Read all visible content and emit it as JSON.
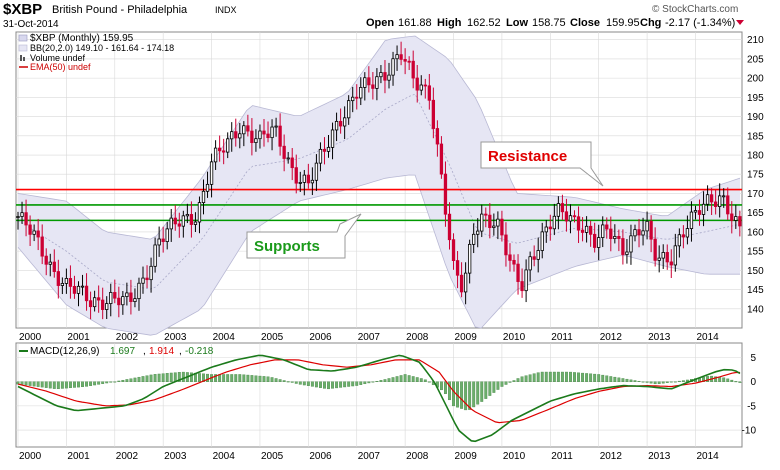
{
  "header": {
    "symbol": "$XBP",
    "name": "British Pound - Philadelphia",
    "exchange": "INDX",
    "date": "31-Oct-2014",
    "open_label": "Open",
    "open": "161.88",
    "high_label": "High",
    "high": "162.52",
    "low_label": "Low",
    "low": "158.75",
    "close_label": "Close",
    "close": "159.95",
    "chg_label": "Chg",
    "chg": "-2.17 (-1.34%)",
    "watermark": "© StockCharts.com"
  },
  "legend": {
    "price": "$XBP (Monthly) 159.95",
    "bb": "BB(20,2.0) 149.10 - 161.64 - 174.18",
    "volume": "Volume undef",
    "ema": "EMA(50) undef"
  },
  "annotations": {
    "resistance": "Resistance",
    "supports": "Supports"
  },
  "colors": {
    "up_candle": "#000000",
    "down_candle": "#cc0033",
    "bollinger_fill": "#e6e6f4",
    "bollinger_edge": "#b8b8d4",
    "resistance_line": "#ff0000",
    "support_line": "#009900",
    "macd_line": "#1b7a1b",
    "signal_line": "#dd0000",
    "histogram": "#6cae6c",
    "grid": "#d9d9d9"
  },
  "chart_data": [
    {
      "type": "candlestick",
      "title": "$XBP British Pound - Philadelphia INDX (Monthly)",
      "x_tick_labels": [
        "2000",
        "2001",
        "2002",
        "2003",
        "2004",
        "2005",
        "2006",
        "2007",
        "2008",
        "2009",
        "2010",
        "2011",
        "2012",
        "2013",
        "2014"
      ],
      "x_range": [
        2000.0,
        2014.92
      ],
      "ylim": [
        135,
        212
      ],
      "y_ticks": [
        140,
        145,
        150,
        155,
        160,
        165,
        170,
        175,
        180,
        185,
        190,
        195,
        200,
        205,
        210
      ],
      "horizontal_lines": [
        {
          "label": "Resistance",
          "y": 171
        },
        {
          "label": "Supports",
          "y": 167
        },
        {
          "label": "Supports",
          "y": 163
        }
      ],
      "close_anchors": {
        "x": [
          2000.0,
          2000.3,
          2000.7,
          2001.0,
          2001.5,
          2001.9,
          2002.3,
          2002.6,
          2002.9,
          2003.3,
          2003.7,
          2004.0,
          2004.3,
          2004.6,
          2005.0,
          2005.3,
          2005.7,
          2006.0,
          2006.3,
          2006.6,
          2007.0,
          2007.3,
          2007.6,
          2007.9,
          2008.2,
          2008.5,
          2008.7,
          2008.9,
          2009.0,
          2009.2,
          2009.4,
          2009.6,
          2009.9,
          2010.2,
          2010.4,
          2010.6,
          2010.9,
          2011.2,
          2011.4,
          2011.7,
          2011.9,
          2012.2,
          2012.5,
          2012.8,
          2013.0,
          2013.2,
          2013.5,
          2013.7,
          2014.0,
          2014.3,
          2014.55,
          2014.7,
          2014.92
        ],
        "y": [
          164,
          159,
          151,
          146,
          142,
          143,
          141,
          148,
          158,
          162,
          165,
          178,
          182,
          188,
          184,
          186,
          176,
          172,
          180,
          189,
          196,
          198,
          202,
          207,
          198,
          196,
          180,
          160,
          150,
          144,
          160,
          165,
          162,
          150,
          146,
          154,
          160,
          165,
          164,
          162,
          157,
          160,
          156,
          161,
          160,
          152,
          154,
          160,
          164,
          168,
          170,
          166,
          160
        ]
      },
      "bollinger_anchors": {
        "x": [
          2000.0,
          2001.0,
          2001.8,
          2002.8,
          2003.8,
          2004.8,
          2005.8,
          2006.8,
          2007.6,
          2008.2,
          2008.9,
          2009.5,
          2010.3,
          2011.5,
          2012.5,
          2013.4,
          2014.2,
          2014.92
        ],
        "upper": [
          170,
          168,
          160,
          158,
          174,
          193,
          190,
          196,
          210,
          211,
          205,
          194,
          170,
          169,
          166,
          164,
          171,
          174
        ],
        "middle": [
          163,
          155,
          147,
          145,
          158,
          177,
          179,
          184,
          192,
          196,
          178,
          160,
          157,
          161,
          160,
          158,
          160,
          162
        ],
        "lower": [
          156,
          141,
          135,
          133,
          140,
          160,
          168,
          171,
          174,
          175,
          149,
          134,
          145,
          151,
          154,
          151,
          149,
          149
        ]
      }
    },
    {
      "type": "line",
      "title": "MACD(12,26,9) 1.697, 1.914, -0.218",
      "x_range": [
        2000.0,
        2014.92
      ],
      "ylim": [
        -13.5,
        8
      ],
      "y_ticks": [
        -10,
        -5,
        0,
        5
      ],
      "macd_value": "1.697",
      "signal_value": "1.914",
      "histogram_value": "-0.218",
      "series": [
        {
          "name": "MACD",
          "x": [
            2000.0,
            2000.4,
            2000.8,
            2001.2,
            2001.7,
            2002.2,
            2002.6,
            2003.0,
            2003.5,
            2004.0,
            2004.5,
            2005.0,
            2005.5,
            2006.0,
            2006.5,
            2007.0,
            2007.5,
            2007.9,
            2008.3,
            2008.6,
            2008.9,
            2009.1,
            2009.4,
            2009.8,
            2010.2,
            2010.6,
            2011.0,
            2011.5,
            2012.0,
            2012.5,
            2013.0,
            2013.5,
            2014.0,
            2014.4,
            2014.6,
            2014.8,
            2014.92
          ],
          "y": [
            -1,
            -3,
            -5,
            -6,
            -5.5,
            -5,
            -3.5,
            -1,
            1,
            3,
            4.5,
            5.5,
            4.5,
            2.5,
            2.2,
            3,
            4.5,
            5.5,
            4,
            0,
            -6,
            -10,
            -12.5,
            -11,
            -8,
            -6,
            -4,
            -2.5,
            -1.5,
            -0.8,
            -1,
            -1.5,
            0.5,
            2,
            2.5,
            2.4,
            1.7
          ]
        },
        {
          "name": "Signal",
          "x": [
            2000.0,
            2000.6,
            2001.2,
            2001.8,
            2002.3,
            2002.8,
            2003.3,
            2003.8,
            2004.3,
            2004.8,
            2005.3,
            2005.8,
            2006.3,
            2006.8,
            2007.3,
            2007.8,
            2008.3,
            2008.7,
            2009.0,
            2009.4,
            2009.9,
            2010.4,
            2010.9,
            2011.5,
            2012.0,
            2012.5,
            2013.0,
            2013.5,
            2014.0,
            2014.5,
            2014.8,
            2014.92
          ],
          "y": [
            -0.5,
            -2,
            -4,
            -5,
            -4.8,
            -3.8,
            -2,
            0,
            2,
            3.5,
            4.5,
            4.5,
            3.5,
            3,
            3.5,
            4.5,
            4.5,
            2,
            -2,
            -6,
            -8.5,
            -8,
            -6,
            -3.5,
            -2,
            -1,
            -0.8,
            -1,
            -0.3,
            1,
            1.9,
            1.9
          ]
        }
      ],
      "histogram": {
        "name": "Histogram",
        "x": [
          2000.0,
          2000.8,
          2001.4,
          2002.0,
          2002.8,
          2003.4,
          2004.0,
          2004.6,
          2005.2,
          2005.8,
          2006.4,
          2007.0,
          2007.6,
          2008.0,
          2008.4,
          2008.8,
          2009.0,
          2009.3,
          2009.6,
          2010.0,
          2010.4,
          2010.8,
          2011.4,
          2012.0,
          2012.6,
          2013.2,
          2013.8,
          2014.3,
          2014.6,
          2014.92
        ],
        "y": [
          -0.5,
          -1.5,
          -1,
          0,
          1.5,
          2,
          1.5,
          1.5,
          1,
          -0.5,
          -1.5,
          -0.8,
          0.5,
          1.5,
          0.5,
          -2,
          -5,
          -6,
          -4,
          -1,
          1,
          2,
          2,
          1.5,
          0.5,
          -0.5,
          0.3,
          1.2,
          0.8,
          -0.2
        ]
      }
    }
  ]
}
